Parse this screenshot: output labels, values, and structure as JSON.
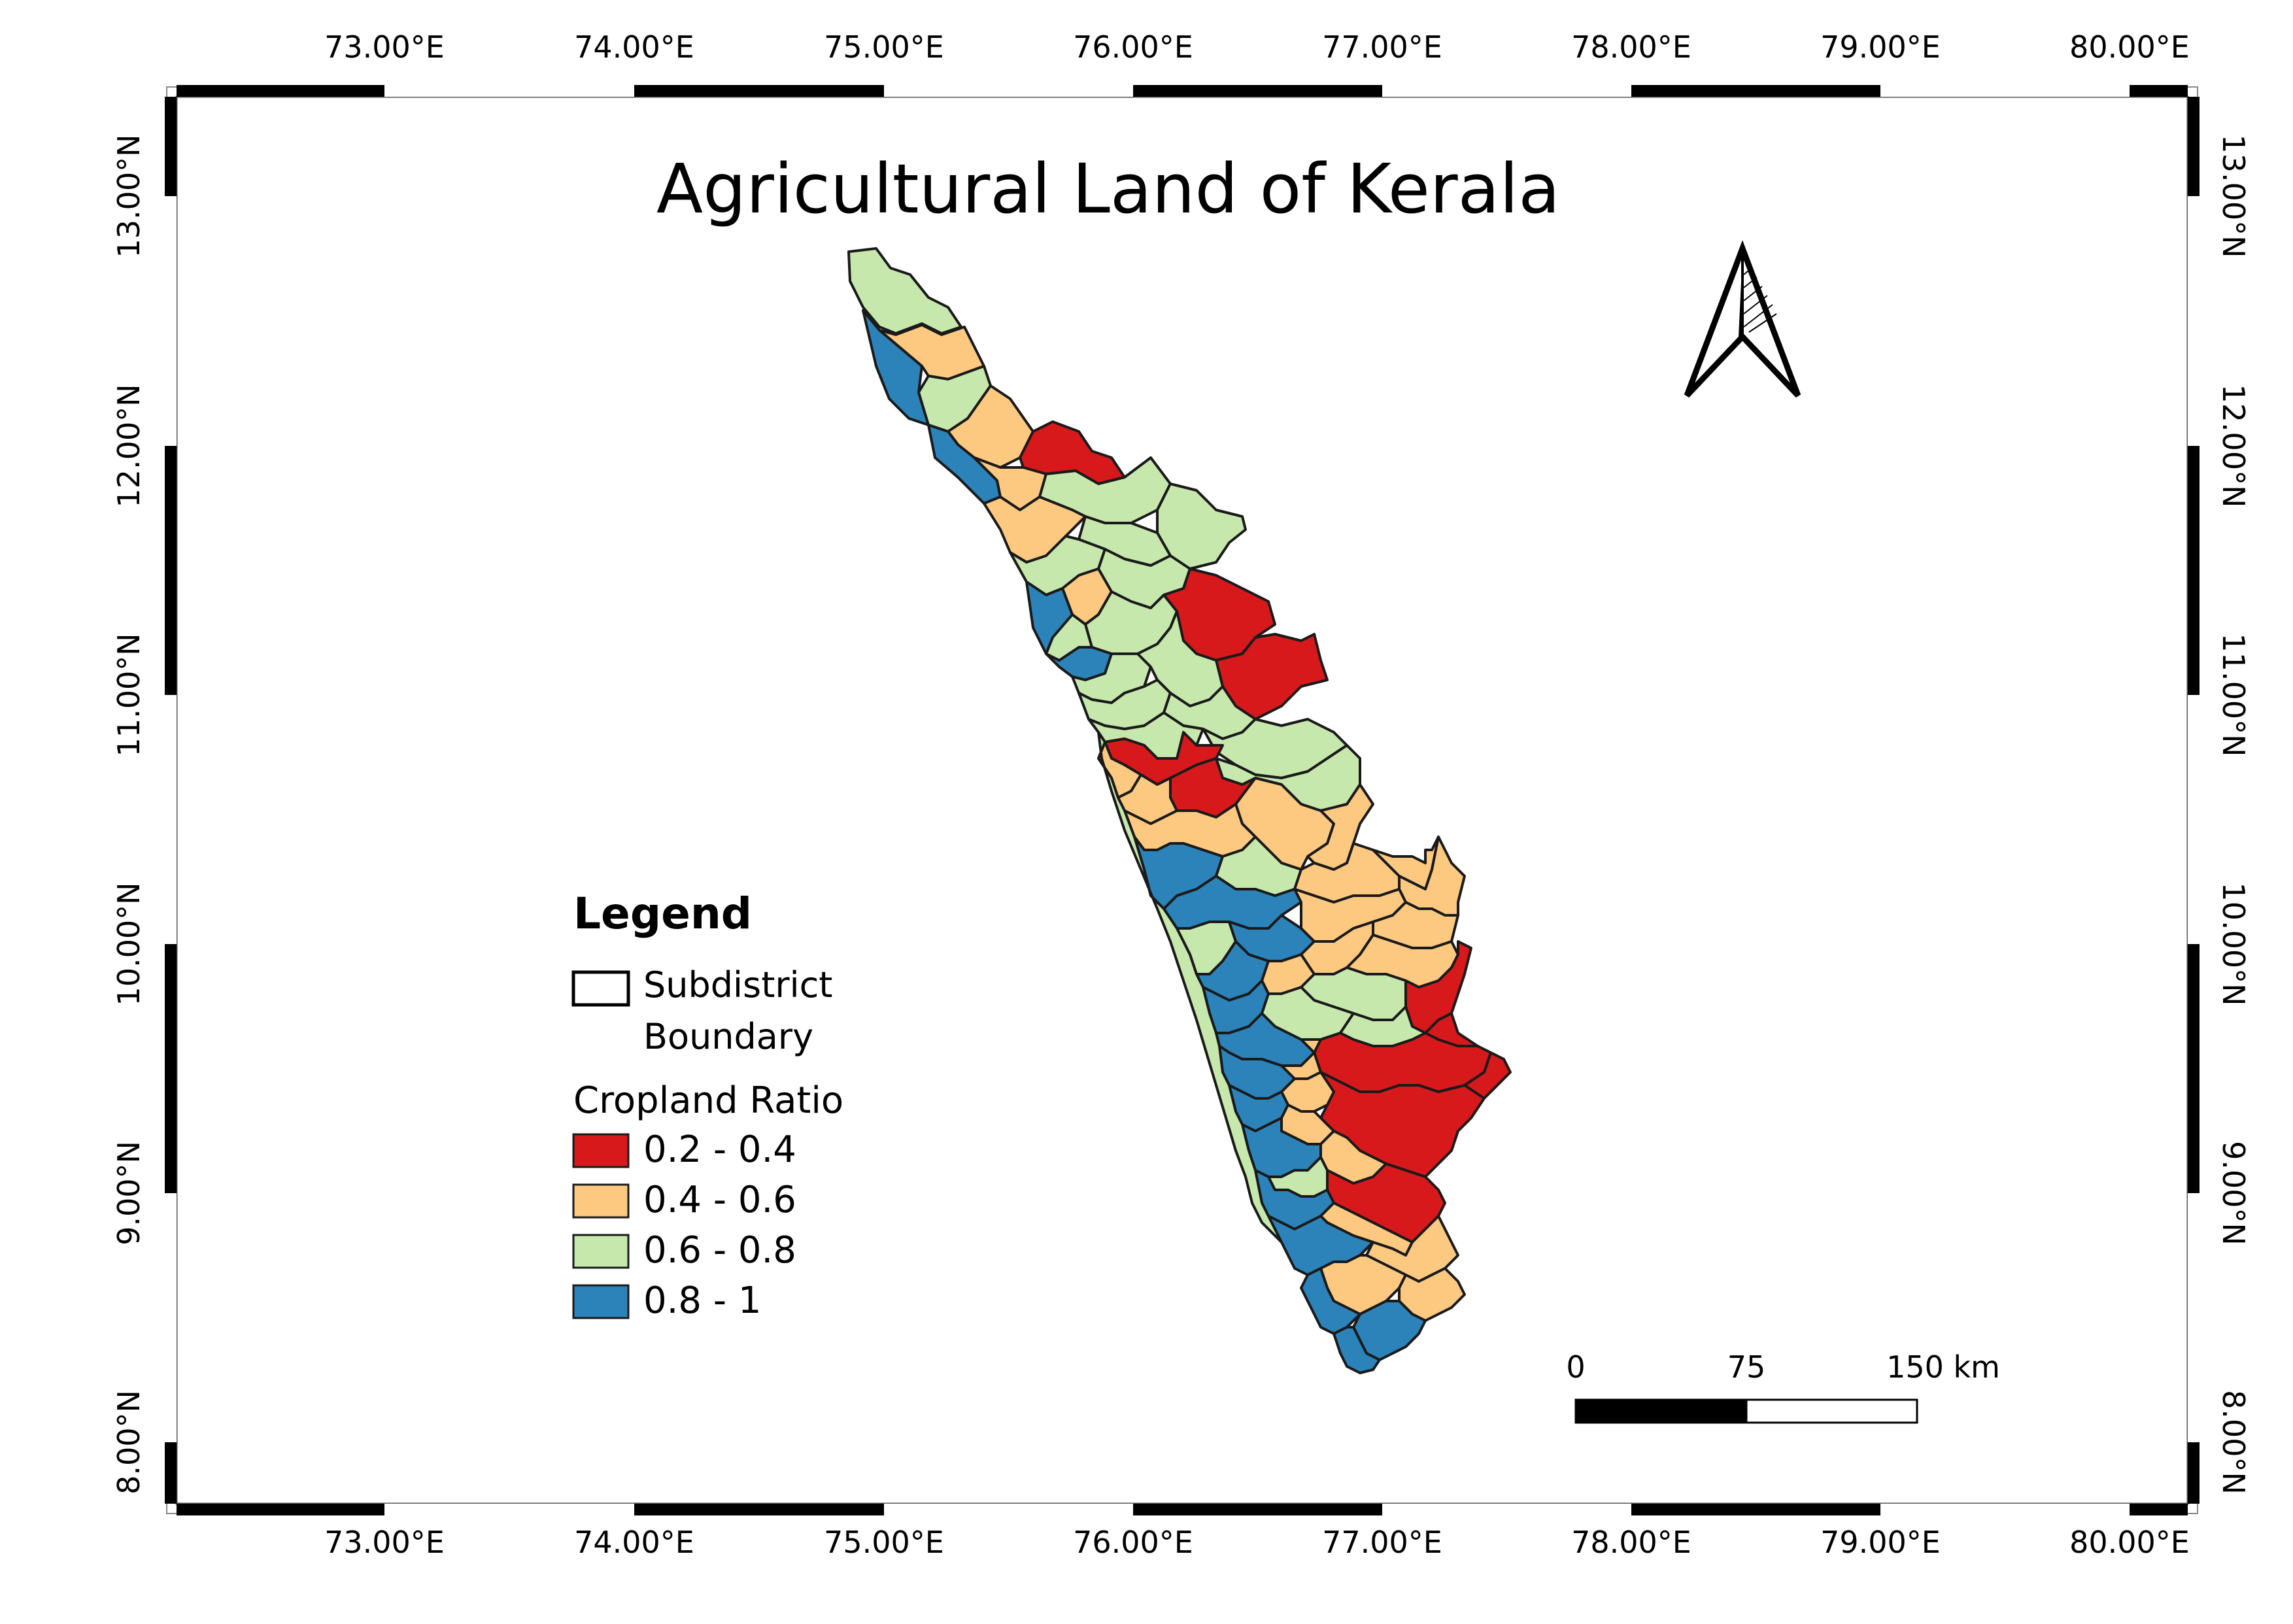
{
  "map": {
    "title": "Agricultural Land of Kerala",
    "lon_labels": [
      "73.00°E",
      "74.00°E",
      "75.00°E",
      "76.00°E",
      "77.00°E",
      "78.00°E",
      "79.00°E",
      "80.00°E"
    ],
    "lat_labels": [
      "13.00°N",
      "12.00°N",
      "11.00°N",
      "10.00°N",
      "9.00°N",
      "8.00°N"
    ]
  },
  "legend": {
    "title": "Legend",
    "boundary_label_line1": "Subdistrict",
    "boundary_label_line2": "Boundary",
    "ratio_title": "Cropland Ratio",
    "classes": [
      {
        "label": "0.2 - 0.4",
        "color": "#d7191c"
      },
      {
        "label": "0.4 - 0.6",
        "color": "#fdc980"
      },
      {
        "label": "0.6 - 0.8",
        "color": "#c7e8ad"
      },
      {
        "label": "0.8 - 1",
        "color": "#2b83ba"
      }
    ]
  },
  "scale_bar": {
    "label_0": "0",
    "label_mid": "75",
    "label_end": "150 km"
  },
  "north_arrow": {
    "icon": "north-arrow-icon"
  }
}
